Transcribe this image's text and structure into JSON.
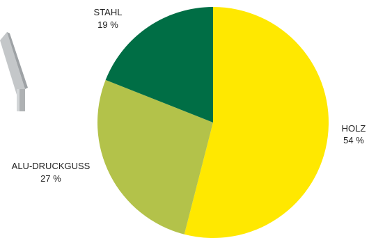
{
  "chart_data": {
    "type": "pie",
    "slices": [
      {
        "label": "HOLZ",
        "value": 54,
        "value_label": "54 %",
        "color": "#ffe800"
      },
      {
        "label": "ALU-DRUCKGUSS",
        "value": 27,
        "value_label": "27 %",
        "color": "#b3c24a"
      },
      {
        "label": "STAHL",
        "value": 19,
        "value_label": "19 %",
        "color": "#006e45"
      }
    ],
    "start": "12 o'clock",
    "direction": "clockwise"
  },
  "decoration": {
    "chair_leg_icon": "chair-leg-icon",
    "chair_leg_color": "#b9bcbe"
  }
}
